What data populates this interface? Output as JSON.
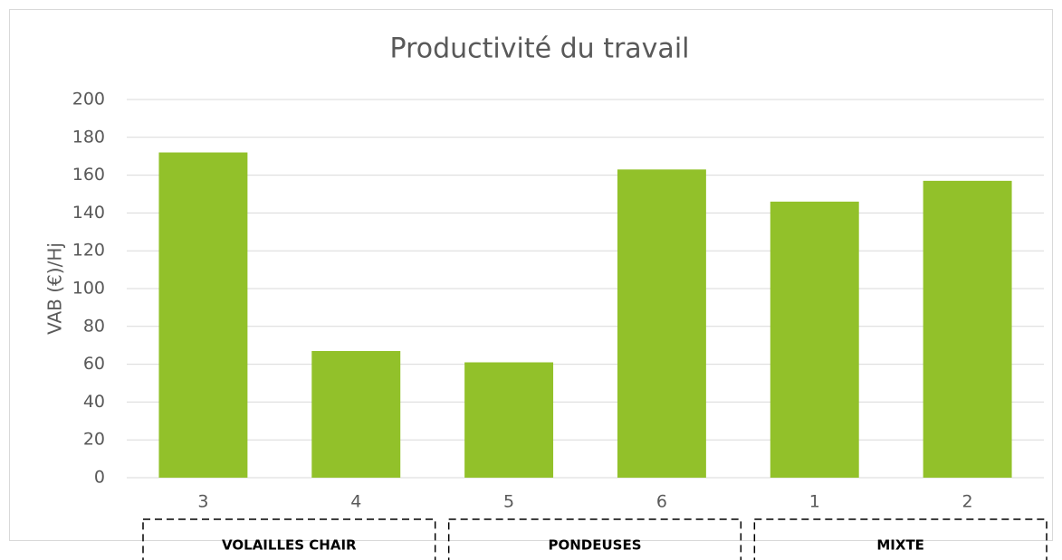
{
  "chart_data": {
    "type": "bar",
    "title": "Productivité du travail",
    "y_label": "VAB (€)/Hj",
    "categories": [
      "3",
      "4",
      "5",
      "6",
      "1",
      "2"
    ],
    "values": [
      172,
      67,
      61,
      163,
      146,
      157
    ],
    "color": "#92c12a",
    "ylim": [
      0,
      200
    ],
    "yticks": [
      0,
      20,
      40,
      60,
      80,
      100,
      120,
      140,
      160,
      180,
      200
    ],
    "grid": true,
    "groups": [
      "VOLAILLES CHAIR",
      "PONDEUSES",
      "MIXTE"
    ]
  }
}
